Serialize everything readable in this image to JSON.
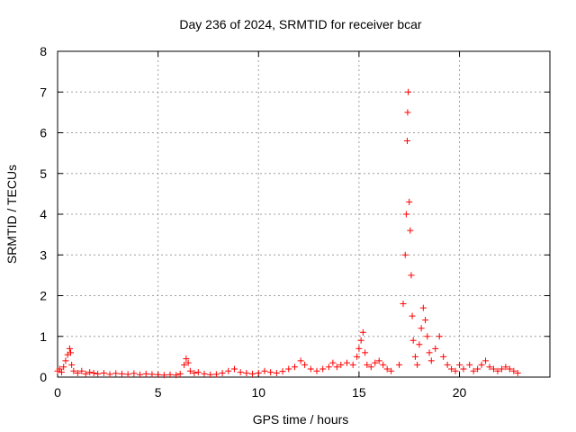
{
  "chart_data": {
    "type": "scatter",
    "title": "Day 236 of 2024, SRMTID for receiver bcar",
    "xlabel": "GPS time / hours",
    "ylabel": "SRMTID / TECUs",
    "xlim": [
      0,
      24.5
    ],
    "ylim": [
      0,
      8
    ],
    "xticks": [
      0,
      5,
      10,
      15,
      20
    ],
    "yticks": [
      0,
      1,
      2,
      3,
      4,
      5,
      6,
      7,
      8
    ],
    "grid": true,
    "marker": "+",
    "color": "#ff0000",
    "series": [
      {
        "name": "SRMTID",
        "points": [
          [
            0.0,
            0.15
          ],
          [
            0.1,
            0.2
          ],
          [
            0.2,
            0.12
          ],
          [
            0.3,
            0.25
          ],
          [
            0.4,
            0.4
          ],
          [
            0.5,
            0.55
          ],
          [
            0.6,
            0.7
          ],
          [
            0.65,
            0.6
          ],
          [
            0.7,
            0.3
          ],
          [
            0.8,
            0.15
          ],
          [
            1.0,
            0.1
          ],
          [
            1.2,
            0.15
          ],
          [
            1.4,
            0.08
          ],
          [
            1.6,
            0.12
          ],
          [
            1.8,
            0.1
          ],
          [
            2.0,
            0.08
          ],
          [
            2.3,
            0.1
          ],
          [
            2.6,
            0.07
          ],
          [
            2.9,
            0.09
          ],
          [
            3.2,
            0.08
          ],
          [
            3.5,
            0.07
          ],
          [
            3.8,
            0.09
          ],
          [
            4.1,
            0.06
          ],
          [
            4.4,
            0.08
          ],
          [
            4.7,
            0.07
          ],
          [
            5.0,
            0.06
          ],
          [
            5.3,
            0.05
          ],
          [
            5.6,
            0.06
          ],
          [
            5.9,
            0.05
          ],
          [
            6.1,
            0.08
          ],
          [
            6.3,
            0.3
          ],
          [
            6.4,
            0.45
          ],
          [
            6.5,
            0.35
          ],
          [
            6.6,
            0.15
          ],
          [
            6.8,
            0.1
          ],
          [
            7.0,
            0.12
          ],
          [
            7.3,
            0.08
          ],
          [
            7.6,
            0.06
          ],
          [
            7.9,
            0.07
          ],
          [
            8.2,
            0.1
          ],
          [
            8.5,
            0.15
          ],
          [
            8.8,
            0.2
          ],
          [
            9.1,
            0.12
          ],
          [
            9.4,
            0.1
          ],
          [
            9.7,
            0.08
          ],
          [
            10.0,
            0.1
          ],
          [
            10.3,
            0.15
          ],
          [
            10.6,
            0.12
          ],
          [
            10.9,
            0.1
          ],
          [
            11.2,
            0.14
          ],
          [
            11.5,
            0.2
          ],
          [
            11.8,
            0.25
          ],
          [
            12.1,
            0.4
          ],
          [
            12.3,
            0.3
          ],
          [
            12.6,
            0.2
          ],
          [
            12.9,
            0.15
          ],
          [
            13.2,
            0.2
          ],
          [
            13.5,
            0.25
          ],
          [
            13.7,
            0.35
          ],
          [
            13.9,
            0.25
          ],
          [
            14.1,
            0.3
          ],
          [
            14.4,
            0.35
          ],
          [
            14.7,
            0.3
          ],
          [
            14.9,
            0.5
          ],
          [
            15.0,
            0.7
          ],
          [
            15.1,
            0.9
          ],
          [
            15.2,
            1.1
          ],
          [
            15.3,
            0.6
          ],
          [
            15.4,
            0.3
          ],
          [
            15.6,
            0.25
          ],
          [
            15.8,
            0.35
          ],
          [
            16.0,
            0.4
          ],
          [
            16.2,
            0.3
          ],
          [
            16.4,
            0.2
          ],
          [
            16.6,
            0.15
          ],
          [
            17.0,
            0.3
          ],
          [
            17.2,
            1.8
          ],
          [
            17.3,
            3.0
          ],
          [
            17.35,
            4.0
          ],
          [
            17.4,
            5.8
          ],
          [
            17.42,
            6.5
          ],
          [
            17.45,
            7.0
          ],
          [
            17.5,
            4.3
          ],
          [
            17.55,
            3.6
          ],
          [
            17.6,
            2.5
          ],
          [
            17.65,
            1.5
          ],
          [
            17.7,
            0.9
          ],
          [
            17.8,
            0.5
          ],
          [
            17.9,
            0.3
          ],
          [
            18.0,
            0.8
          ],
          [
            18.1,
            1.2
          ],
          [
            18.2,
            1.7
          ],
          [
            18.3,
            1.4
          ],
          [
            18.4,
            1.0
          ],
          [
            18.5,
            0.6
          ],
          [
            18.6,
            0.4
          ],
          [
            18.8,
            0.7
          ],
          [
            19.0,
            1.0
          ],
          [
            19.2,
            0.5
          ],
          [
            19.4,
            0.3
          ],
          [
            19.6,
            0.2
          ],
          [
            19.8,
            0.15
          ],
          [
            20.0,
            0.3
          ],
          [
            20.2,
            0.2
          ],
          [
            20.5,
            0.3
          ],
          [
            20.7,
            0.15
          ],
          [
            20.9,
            0.2
          ],
          [
            21.1,
            0.3
          ],
          [
            21.3,
            0.4
          ],
          [
            21.5,
            0.25
          ],
          [
            21.7,
            0.2
          ],
          [
            21.9,
            0.15
          ],
          [
            22.1,
            0.2
          ],
          [
            22.3,
            0.25
          ],
          [
            22.5,
            0.2
          ],
          [
            22.7,
            0.15
          ],
          [
            22.9,
            0.1
          ]
        ]
      }
    ]
  }
}
